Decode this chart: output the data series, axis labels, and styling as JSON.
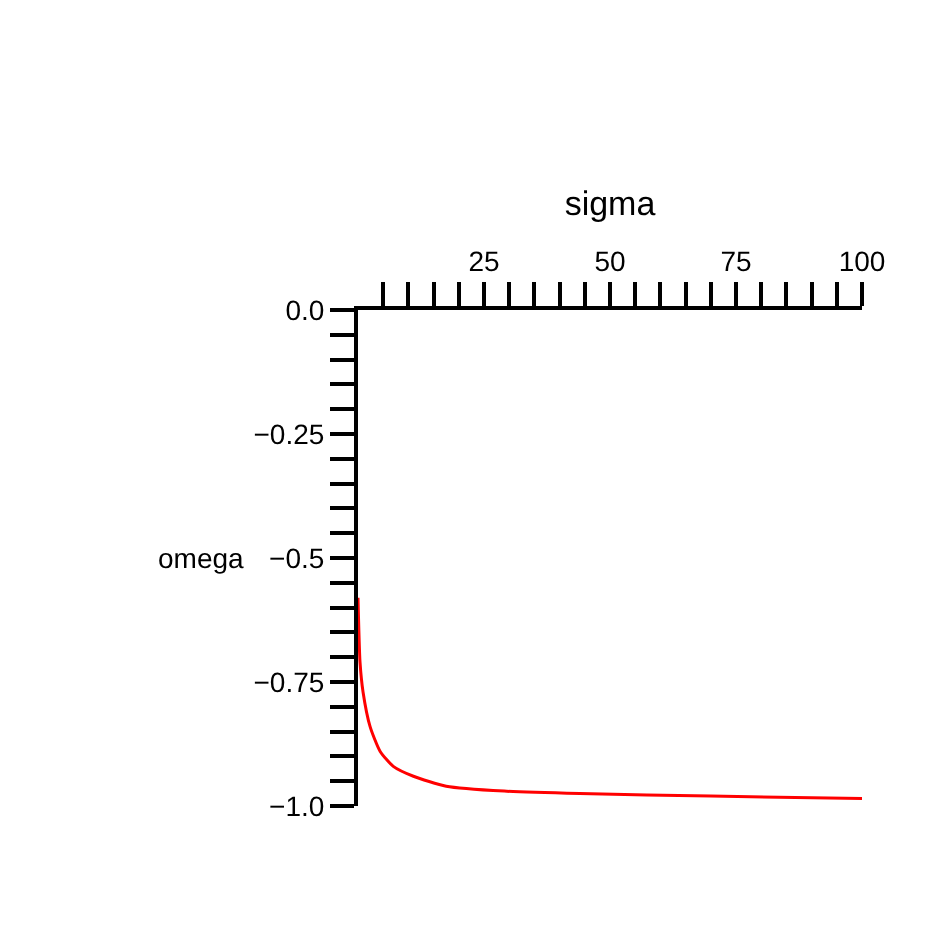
{
  "chart_data": {
    "type": "line",
    "xlabel": "sigma",
    "ylabel": "omega",
    "x": [
      0,
      0.4,
      1,
      2.4,
      4.4,
      7,
      11,
      17.5,
      29,
      44,
      70,
      100
    ],
    "series": [
      {
        "color": "#ff0000",
        "values": [
          -0.58,
          -0.71,
          -0.77,
          -0.84,
          -0.89,
          -0.92,
          -0.94,
          -0.96,
          -0.97,
          -0.975,
          -0.98,
          -0.985
        ]
      }
    ],
    "xlim": [
      0,
      100
    ],
    "xticks": [
      {
        "value": 5,
        "label": null
      },
      {
        "value": 10,
        "label": null
      },
      {
        "value": 15,
        "label": null
      },
      {
        "value": 20,
        "label": null
      },
      25,
      {
        "value": 30,
        "label": null
      },
      {
        "value": 35,
        "label": null
      },
      {
        "value": 40,
        "label": null
      },
      {
        "value": 45,
        "label": null
      },
      50,
      {
        "value": 55,
        "label": null
      },
      {
        "value": 60,
        "label": null
      },
      {
        "value": 65,
        "label": null
      },
      {
        "value": 70,
        "label": null
      },
      75,
      {
        "value": 80,
        "label": null
      },
      {
        "value": 85,
        "label": null
      },
      {
        "value": 90,
        "label": null
      },
      {
        "value": 95,
        "label": null
      },
      100
    ],
    "ylim": [
      -1,
      0
    ],
    "yticks": [
      {
        "value": 0,
        "label": "0.0"
      },
      {
        "value": -0.05,
        "label": null
      },
      {
        "value": -0.1,
        "label": null
      },
      {
        "value": -0.15,
        "label": null
      },
      {
        "value": -0.2,
        "label": null
      },
      {
        "value": -0.25,
        "label": "−0.25"
      },
      {
        "value": -0.3,
        "label": null
      },
      {
        "value": -0.35,
        "label": null
      },
      {
        "value": -0.4,
        "label": null
      },
      {
        "value": -0.45,
        "label": null
      },
      {
        "value": -0.5,
        "label": "−0.5"
      },
      {
        "value": -0.55,
        "label": null
      },
      {
        "value": -0.6,
        "label": null
      },
      {
        "value": -0.65,
        "label": null
      },
      {
        "value": -0.7,
        "label": null
      },
      {
        "value": -0.75,
        "label": "−0.75"
      },
      {
        "value": -0.8,
        "label": null
      },
      {
        "value": -0.85,
        "label": null
      },
      {
        "value": -0.9,
        "label": null
      },
      {
        "value": -0.95,
        "label": null
      },
      {
        "value": -1,
        "label": "−1.0"
      }
    ],
    "line_style": "solid",
    "marker": "none"
  }
}
